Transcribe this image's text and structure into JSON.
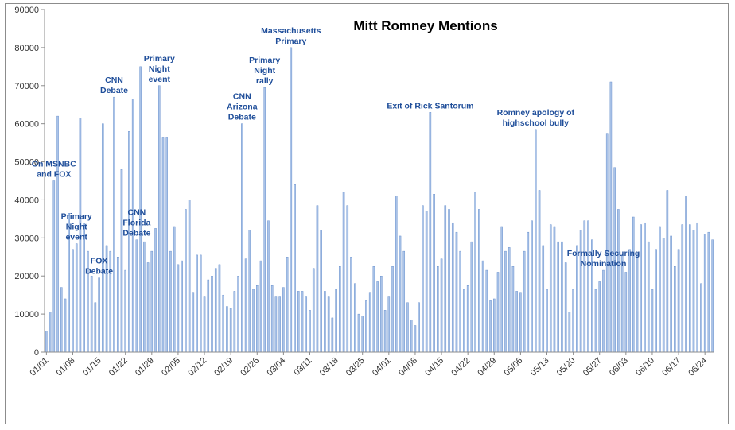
{
  "chart_data": {
    "type": "bar",
    "title": "Mitt Romney Mentions",
    "xlabel": "",
    "ylabel": "",
    "ylim": [
      0,
      90000
    ],
    "yticks": [
      0,
      10000,
      20000,
      30000,
      40000,
      50000,
      60000,
      70000,
      80000,
      90000
    ],
    "grid": false,
    "legend": "none",
    "bar_color": "#aac3e8",
    "bar_edge_color": "#5b86c8",
    "annotation_color": "#1f4e9a",
    "x_tick_labels": [
      "01/01",
      "01/08",
      "01/15",
      "01/22",
      "01/29",
      "02/05",
      "02/12",
      "02/19",
      "02/26",
      "03/04",
      "03/11",
      "03/18",
      "03/25",
      "04/01",
      "04/08",
      "04/15",
      "04/22",
      "04/29",
      "05/06",
      "05/13",
      "05/20",
      "05/27",
      "06/03",
      "06/10",
      "06/17",
      "06/24"
    ],
    "values": [
      5500,
      10500,
      45000,
      62000,
      17000,
      14000,
      36500,
      27000,
      28500,
      61500,
      34000,
      26500,
      20000,
      13000,
      19500,
      60000,
      28000,
      26500,
      67000,
      25000,
      48000,
      21500,
      58000,
      66500,
      29500,
      75000,
      29000,
      23500,
      26500,
      32500,
      70000,
      56500,
      56500,
      26500,
      33000,
      23000,
      24000,
      37500,
      40000,
      15500,
      25500,
      25500,
      14500,
      19000,
      20000,
      22000,
      23000,
      15000,
      12000,
      11500,
      16000,
      20000,
      60000,
      24500,
      32000,
      16500,
      17500,
      24000,
      69500,
      34500,
      17500,
      14500,
      14500,
      17000,
      25000,
      80000,
      44000,
      16000,
      16000,
      14500,
      11000,
      22000,
      38500,
      32000,
      16000,
      14500,
      9000,
      16500,
      22500,
      42000,
      38500,
      25000,
      18000,
      10000,
      9500,
      13500,
      15500,
      22500,
      18500,
      20000,
      11000,
      14500,
      22500,
      41000,
      30500,
      26500,
      13000,
      8500,
      7000,
      13000,
      38500,
      37000,
      63000,
      41500,
      22500,
      24500,
      38500,
      37500,
      34000,
      31500,
      26500,
      16500,
      17500,
      29000,
      42000,
      37500,
      24000,
      21500,
      13500,
      14000,
      21000,
      33000,
      26500,
      27500,
      22500,
      16000,
      15500,
      26500,
      31500,
      34500,
      58500,
      42500,
      28000,
      16500,
      33500,
      33000,
      29000,
      29000,
      23500,
      10500,
      16500,
      28000,
      32000,
      34500,
      34500,
      29500,
      16500,
      18500,
      21500,
      57500,
      71000,
      48500,
      37500,
      25500,
      21000,
      27000,
      35500,
      26000,
      33500,
      34000,
      29000,
      16500,
      27000,
      33000,
      30000,
      42500,
      30500,
      22500,
      27000,
      33500,
      41000,
      33500,
      32000,
      34000,
      18000,
      31000,
      31500,
      29500
    ],
    "annotations": [
      {
        "lines": [
          "On MSNBC",
          "and FOX"
        ],
        "day": 2
      },
      {
        "lines": [
          "Primary",
          "Night",
          "event"
        ],
        "day": 8
      },
      {
        "lines": [
          "FOX",
          "Debate"
        ],
        "day": 14
      },
      {
        "lines": [
          "CNN",
          "Debate"
        ],
        "day": 18
      },
      {
        "lines": [
          "CNN",
          "Florida",
          "Debate"
        ],
        "day": 24
      },
      {
        "lines": [
          "Primary",
          "Night",
          "event"
        ],
        "day": 30
      },
      {
        "lines": [
          "CNN",
          "Arizona",
          "Debate"
        ],
        "day": 52
      },
      {
        "lines": [
          "Primary",
          "Night",
          "rally"
        ],
        "day": 58
      },
      {
        "lines": [
          "Massachusetts",
          "Primary"
        ],
        "day": 65
      },
      {
        "lines": [
          "Exit of Rick Santorum"
        ],
        "day": 102
      },
      {
        "lines": [
          "Romney apology of",
          "highschool bully"
        ],
        "day": 130
      },
      {
        "lines": [
          "Formally Securing",
          "Nomination"
        ],
        "day": 148
      }
    ]
  }
}
